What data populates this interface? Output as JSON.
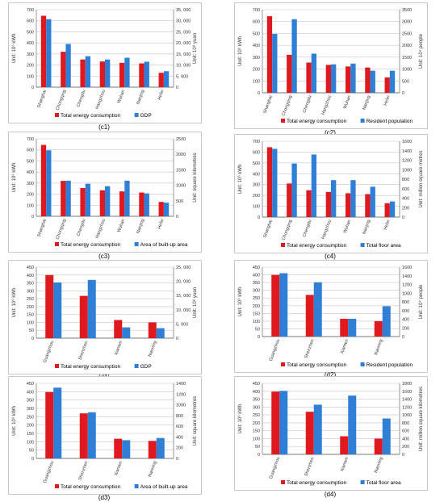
{
  "colors": {
    "red": "#e0191f",
    "blue": "#2f7fd6",
    "grid": "#c7c7c7",
    "axis": "#555555"
  },
  "chart_data": [
    {
      "type": "bar",
      "caption": "(c1)",
      "categories": [
        "Shanghai",
        "Chongqing",
        "Chengdu",
        "Hangzhou",
        "Wuhan",
        "Nanjing",
        "Hefei"
      ],
      "series": [
        {
          "name": "Total energy consumption",
          "axis": "left",
          "color": "red",
          "values": [
            645,
            320,
            250,
            232,
            220,
            215,
            130
          ]
        },
        {
          "name": "GDP",
          "axis": "right",
          "color": "blue",
          "values": [
            30700,
            19500,
            14000,
            12500,
            13300,
            11500,
            7200
          ]
        }
      ],
      "ylabel": "Unit: 10⁶ kWh",
      "ylim": [
        0,
        700
      ],
      "yticks": [
        0,
        100,
        200,
        300,
        400,
        500,
        600,
        700
      ],
      "y2label": "Unit: 10⁸ yuan",
      "y2lim": [
        0,
        35000
      ],
      "y2ticks": [
        0,
        5000,
        10000,
        15000,
        20000,
        25000,
        30000,
        35000
      ],
      "y2ticklabels": [
        "0",
        "5, 000",
        "10, 000",
        "15, 000",
        "20, 000",
        "25, 000",
        "30, 000",
        "35, 000"
      ]
    },
    {
      "type": "bar",
      "caption": "(c2)",
      "categories": [
        "Shanghai",
        "Chongqing",
        "Chengdu",
        "Hangzhou",
        "Wuhan",
        "Nanjing",
        "Hefei"
      ],
      "series": [
        {
          "name": "Total energy consumption",
          "axis": "left",
          "color": "red",
          "values": [
            645,
            320,
            255,
            235,
            222,
            213,
            130
          ]
        },
        {
          "name": "Resident population",
          "axis": "right",
          "color": "blue",
          "values": [
            2480,
            3100,
            1650,
            1200,
            1230,
            930,
            930
          ]
        }
      ],
      "ylabel": "Unit: 10⁶ kWh",
      "ylim": [
        0,
        700
      ],
      "yticks": [
        0,
        100,
        200,
        300,
        400,
        500,
        600,
        700
      ],
      "y2label": "Unit: 10⁴ people",
      "y2lim": [
        0,
        3500
      ],
      "y2ticks": [
        0,
        500,
        1000,
        1500,
        2000,
        2500,
        3000,
        3500
      ],
      "y2ticklabels": [
        "0",
        "500",
        "1000",
        "1500",
        "2000",
        "2500",
        "3000",
        "3500"
      ]
    },
    {
      "type": "bar",
      "caption": "(c3)",
      "categories": [
        "Shanghai",
        "Chongqing",
        "Chengdu",
        "Hangzhou",
        "Wuhan",
        "Nanjing",
        "Hefei"
      ],
      "series": [
        {
          "name": "Total energy consumption",
          "axis": "left",
          "color": "red",
          "values": [
            645,
            320,
            255,
            235,
            225,
            215,
            130
          ]
        },
        {
          "name": "Area of built-up area",
          "axis": "right",
          "color": "blue",
          "values": [
            2130,
            1150,
            1050,
            970,
            1150,
            740,
            440
          ]
        }
      ],
      "ylabel": "Unit: 10⁶ kWh",
      "ylim": [
        0,
        700
      ],
      "yticks": [
        0,
        100,
        200,
        300,
        400,
        500,
        600,
        700
      ],
      "y2label": "Unit: square kilometres",
      "y2lim": [
        0,
        2500
      ],
      "y2ticks": [
        0,
        500,
        1000,
        1500,
        2000,
        2500
      ],
      "y2ticklabels": [
        "0",
        "500",
        "1000",
        "1500",
        "2000",
        "2500"
      ]
    },
    {
      "type": "bar",
      "caption": "(c4)",
      "categories": [
        "Shanghai",
        "Chongqing",
        "Chengdu",
        "Hangzhou",
        "Wuhan",
        "Nanjing",
        "Hefei"
      ],
      "series": [
        {
          "name": "Total energy consumption",
          "axis": "left",
          "color": "red",
          "values": [
            645,
            310,
            248,
            232,
            220,
            212,
            128
          ]
        },
        {
          "name": "Total floor area",
          "axis": "right",
          "color": "blue",
          "values": [
            1440,
            1130,
            1320,
            780,
            780,
            640,
            330
          ]
        }
      ],
      "ylabel": "Unit: 10⁶ kWh",
      "ylim": [
        0,
        700
      ],
      "yticks": [
        0,
        100,
        200,
        300,
        400,
        500,
        600,
        700
      ],
      "y2label": "Unit: million square metres",
      "y2lim": [
        0,
        1600
      ],
      "y2ticks": [
        0,
        200,
        400,
        600,
        800,
        1000,
        1200,
        1400,
        1600
      ],
      "y2ticklabels": [
        "0",
        "200",
        "400",
        "600",
        "800",
        "1000",
        "1200",
        "1400",
        "1600"
      ]
    },
    {
      "type": "bar",
      "caption": "(d1)",
      "categories": [
        "Guangzhou",
        "Shenzhen",
        "Xiamen",
        "Nanning"
      ],
      "series": [
        {
          "name": "Total energy consumption",
          "axis": "left",
          "color": "red",
          "values": [
            400,
            268,
            115,
            100
          ]
        },
        {
          "name": "GDP",
          "axis": "right",
          "color": "blue",
          "values": [
            19600,
            20500,
            3800,
            3500
          ]
        }
      ],
      "ylabel": "Unit: 10⁶ kWh",
      "ylim": [
        0,
        450
      ],
      "yticks": [
        0,
        50,
        100,
        150,
        200,
        250,
        300,
        350,
        400,
        450
      ],
      "y2label": "Unit: 10⁸ yuan",
      "y2lim": [
        0,
        25000
      ],
      "y2ticks": [
        0,
        5000,
        10000,
        15000,
        20000,
        25000
      ],
      "y2ticklabels": [
        "0",
        "5, 000",
        "10, 000",
        "15, 000",
        "20, 000",
        "25, 000"
      ]
    },
    {
      "type": "bar",
      "caption": "(d2)",
      "categories": [
        "Guangzhou",
        "Shenzhen",
        "Xiamen",
        "Nanning"
      ],
      "series": [
        {
          "name": "Total energy consumption",
          "axis": "left",
          "color": "red",
          "values": [
            400,
            270,
            115,
            100
          ]
        },
        {
          "name": "Resident population",
          "axis": "right",
          "color": "blue",
          "values": [
            1460,
            1250,
            410,
            700
          ]
        }
      ],
      "ylabel": "Unit: 10⁶ kWh",
      "ylim": [
        0,
        450
      ],
      "yticks": [
        0,
        50,
        100,
        150,
        200,
        250,
        300,
        350,
        400,
        450
      ],
      "y2label": "Unit: 10⁴ people",
      "y2lim": [
        0,
        1600
      ],
      "y2ticks": [
        0,
        200,
        400,
        600,
        800,
        1000,
        1200,
        1400,
        1600
      ],
      "y2ticklabels": [
        "0",
        "200",
        "400",
        "600",
        "800",
        "1000",
        "1200",
        "1400",
        "1600"
      ]
    },
    {
      "type": "bar",
      "caption": "(d3)",
      "categories": [
        "Guangzhou",
        "Shenzhen",
        "Xiamen",
        "Nanning"
      ],
      "series": [
        {
          "name": "Total energy consumption",
          "axis": "left",
          "color": "red",
          "values": [
            398,
            270,
            118,
            105
          ]
        },
        {
          "name": "Area of built-up area",
          "axis": "right",
          "color": "blue",
          "values": [
            1320,
            860,
            340,
            380
          ]
        }
      ],
      "ylabel": "Unit: 10⁶ kWh",
      "ylim": [
        0,
        450
      ],
      "yticks": [
        0,
        50,
        100,
        150,
        200,
        250,
        300,
        350,
        400,
        450
      ],
      "y2label": "Unit: square kilometres",
      "y2lim": [
        0,
        1400
      ],
      "y2ticks": [
        0,
        200,
        400,
        600,
        800,
        1000,
        1200,
        1400
      ],
      "y2ticklabels": [
        "0",
        "200",
        "400",
        "600",
        "800",
        "1000",
        "1200",
        "1400"
      ]
    },
    {
      "type": "bar",
      "caption": "(d4)",
      "categories": [
        "Guangzhou",
        "Shenzhen",
        "Xiamen",
        "Nanning"
      ],
      "series": [
        {
          "name": "Total energy consumption",
          "axis": "left",
          "color": "red",
          "values": [
            398,
            270,
            115,
            100
          ]
        },
        {
          "name": "Total floor area",
          "axis": "right",
          "color": "blue",
          "values": [
            1610,
            1260,
            1490,
            910
          ]
        }
      ],
      "ylabel": "Unit: 10⁶ kWh",
      "ylim": [
        0,
        450
      ],
      "yticks": [
        0,
        50,
        100,
        150,
        200,
        250,
        300,
        350,
        400,
        450
      ],
      "y2label": "Unit: million square kilometres",
      "y2lim": [
        0,
        1800
      ],
      "y2ticks": [
        0,
        200,
        400,
        600,
        800,
        1000,
        1200,
        1400,
        1600,
        1800
      ],
      "y2ticklabels": [
        "0",
        "200",
        "400",
        "600",
        "800",
        "1000",
        "1200",
        "1400",
        "1600",
        "1800"
      ]
    }
  ]
}
